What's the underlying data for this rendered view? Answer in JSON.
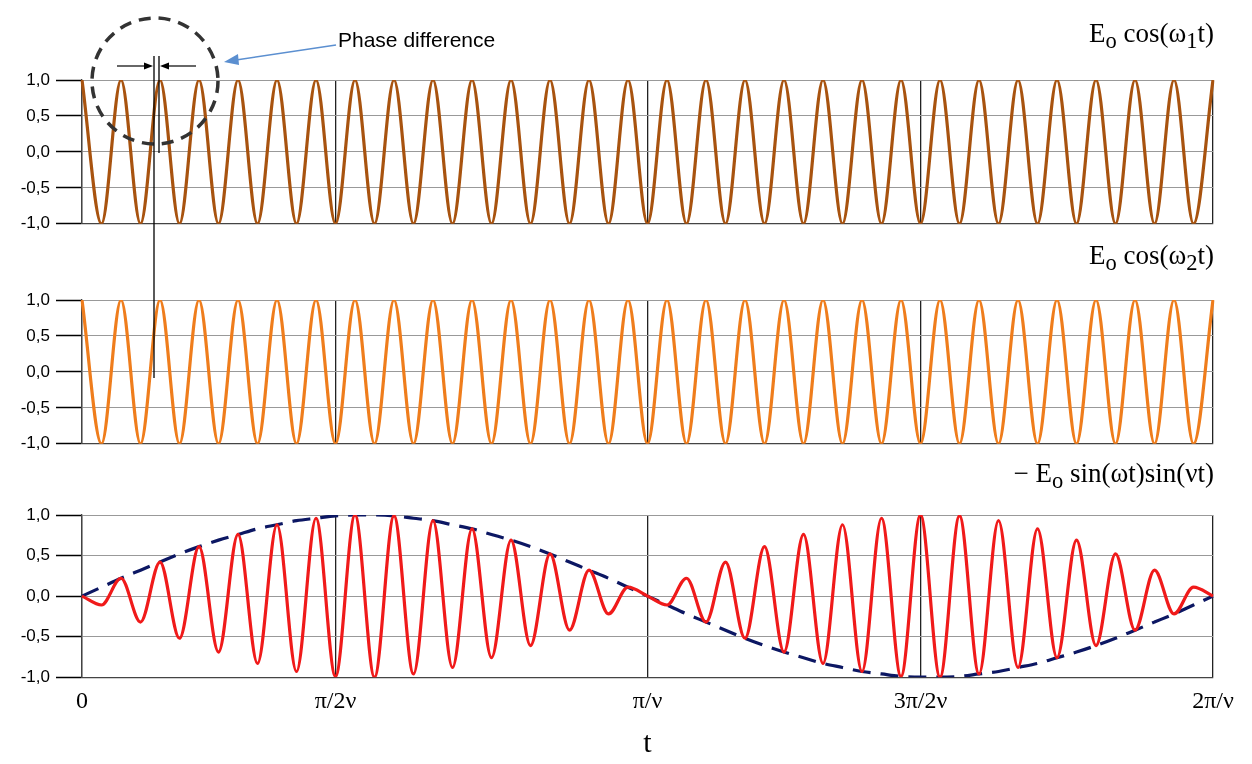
{
  "chart_data": [
    {
      "type": "line",
      "title": "E$_{o}$ cos(ω$_{1}$t)",
      "annotations": [
        "Phase difference"
      ],
      "categories": [
        null,
        null,
        null,
        null,
        null,
        null,
        null,
        null,
        null,
        null,
        null,
        null,
        null,
        null,
        null,
        null,
        null,
        null,
        null,
        null,
        null,
        null,
        null,
        null,
        null,
        null,
        null,
        null,
        null,
        null,
        null,
        null,
        null,
        null,
        null,
        null,
        null,
        null,
        null,
        null,
        null,
        null,
        null,
        null,
        null,
        null,
        null,
        null,
        null,
        null,
        null,
        null,
        null,
        null,
        null,
        null,
        null,
        null,
        null
      ],
      "ylim": [
        -1,
        1
      ],
      "yticks": [
        {
          "value": -1,
          "label": "-1,0"
        },
        {
          "value": -0.5,
          "label": "-0,5"
        },
        {
          "value": 0,
          "label": "0,0"
        },
        {
          "value": 0.5,
          "label": "0,5"
        },
        {
          "value": 1,
          "label": "1,0"
        }
      ],
      "tick_labels": "y",
      "grid": true,
      "legend": false,
      "marker": "none",
      "series": [
        {
          "color": "#a8530f",
          "values": [
            1,
            -1,
            1,
            -1,
            1,
            -1,
            1,
            -1,
            1,
            -1,
            1,
            -1,
            1,
            -1,
            1,
            -1,
            1,
            -1,
            1,
            -1,
            1,
            -1,
            1,
            -1,
            1,
            -1,
            1,
            -1,
            1,
            -1,
            1,
            -1,
            1,
            -1,
            1,
            -1,
            1,
            -1,
            1,
            -1,
            1,
            -1,
            1,
            -1,
            1,
            -1,
            1,
            -1,
            1,
            -1,
            1,
            -1,
            1,
            -1,
            1,
            -1,
            1,
            -1,
            1
          ]
        }
      ]
    },
    {
      "type": "line",
      "title": "E$_{o}$ cos(ω$_{2}$t)",
      "categories": [
        null,
        null,
        null,
        null,
        null,
        null,
        null,
        null,
        null,
        null,
        null,
        null,
        null,
        null,
        null,
        null,
        null,
        null,
        null,
        null,
        null,
        null,
        null,
        null,
        null,
        null,
        null,
        null,
        null,
        null,
        null,
        null,
        null,
        null,
        null,
        null,
        null,
        null,
        null,
        null,
        null,
        null,
        null,
        null,
        null,
        null,
        null,
        null,
        null,
        null,
        null,
        null,
        null,
        null,
        null,
        null,
        null,
        null,
        null
      ],
      "ylim": [
        -1,
        1
      ],
      "yticks": [
        {
          "value": -1,
          "label": "-1,0"
        },
        {
          "value": -0.5,
          "label": "-0,5"
        },
        {
          "value": 0,
          "label": "0,0"
        },
        {
          "value": 0.5,
          "label": "0,5"
        },
        {
          "value": 1,
          "label": "1,0"
        }
      ],
      "tick_labels": "y",
      "grid": true,
      "legend": false,
      "marker": "none",
      "series": [
        {
          "color": "#ef7d1c",
          "values": [
            1,
            -1,
            1,
            -1,
            1,
            -1,
            1,
            -1,
            1,
            -1,
            1,
            -1,
            1,
            -1,
            1,
            -1,
            1,
            -1,
            1,
            -1,
            1,
            -1,
            1,
            -1,
            1,
            -1,
            1,
            -1,
            1,
            -1,
            1,
            -1,
            1,
            -1,
            1,
            -1,
            1,
            -1,
            1,
            -1,
            1,
            -1,
            1,
            -1,
            1,
            -1,
            1,
            -1,
            1,
            -1,
            1,
            -1,
            1,
            -1,
            1,
            -1,
            1,
            -1,
            1
          ]
        }
      ]
    },
    {
      "type": "line",
      "title": "− E$_{o}$ sin(ωt)sin(νt)",
      "xlabel": "t",
      "categories": [
        "0",
        null,
        null,
        null,
        null,
        null,
        null,
        null,
        null,
        null,
        null,
        null,
        null,
        "π/2ν",
        null,
        null,
        null,
        null,
        null,
        null,
        null,
        null,
        null,
        null,
        null,
        null,
        null,
        null,
        null,
        "π/ν",
        null,
        null,
        null,
        null,
        null,
        null,
        null,
        null,
        null,
        null,
        null,
        null,
        null,
        "3π/2ν",
        null,
        null,
        null,
        null,
        null,
        null,
        null,
        null,
        null,
        null,
        null,
        null,
        null,
        null,
        "2π/ν"
      ],
      "ylim": [
        -1,
        1
      ],
      "yticks": [
        {
          "value": -1,
          "label": "-1,0"
        },
        {
          "value": -0.5,
          "label": "-0,5"
        },
        {
          "value": 0,
          "label": "0,0"
        },
        {
          "value": 0.5,
          "label": "0,5"
        },
        {
          "value": 1,
          "label": "1,0"
        }
      ],
      "grid": true,
      "legend": false,
      "marker": "none",
      "series": [
        {
          "color": "#f01a1a",
          "values": [
            0,
            -0.11,
            0.22,
            -0.32,
            0.42,
            -0.52,
            0.61,
            -0.69,
            0.76,
            -0.83,
            0.88,
            -0.93,
            0.96,
            -0.99,
            1,
            -1,
            0.99,
            -0.96,
            0.93,
            -0.88,
            0.83,
            -0.76,
            0.69,
            -0.61,
            0.52,
            -0.42,
            0.32,
            -0.22,
            0.11,
            0,
            -0.11,
            0.22,
            -0.32,
            0.42,
            -0.52,
            0.61,
            -0.69,
            0.76,
            -0.83,
            0.88,
            -0.93,
            0.96,
            -0.99,
            1,
            -1,
            0.99,
            -0.96,
            0.93,
            -0.88,
            0.83,
            -0.76,
            0.69,
            -0.61,
            0.52,
            -0.42,
            0.32,
            -0.22,
            0.11,
            0
          ]
        },
        {
          "color": "#0c1763",
          "line_style": "dashed",
          "values": [
            0,
            0.11,
            0.22,
            0.32,
            0.42,
            0.52,
            0.61,
            0.69,
            0.76,
            0.83,
            0.88,
            0.93,
            0.96,
            0.99,
            1,
            1,
            0.99,
            0.96,
            0.93,
            0.88,
            0.83,
            0.76,
            0.69,
            0.61,
            0.52,
            0.42,
            0.32,
            0.22,
            0.11,
            0,
            -0.11,
            -0.22,
            -0.32,
            -0.42,
            -0.52,
            -0.61,
            -0.69,
            -0.76,
            -0.83,
            -0.88,
            -0.93,
            -0.96,
            -0.99,
            -1,
            -1,
            -0.99,
            -0.96,
            -0.93,
            -0.88,
            -0.83,
            -0.76,
            -0.69,
            -0.61,
            -0.52,
            -0.42,
            -0.32,
            -0.22,
            -0.11,
            0
          ]
        }
      ]
    }
  ]
}
